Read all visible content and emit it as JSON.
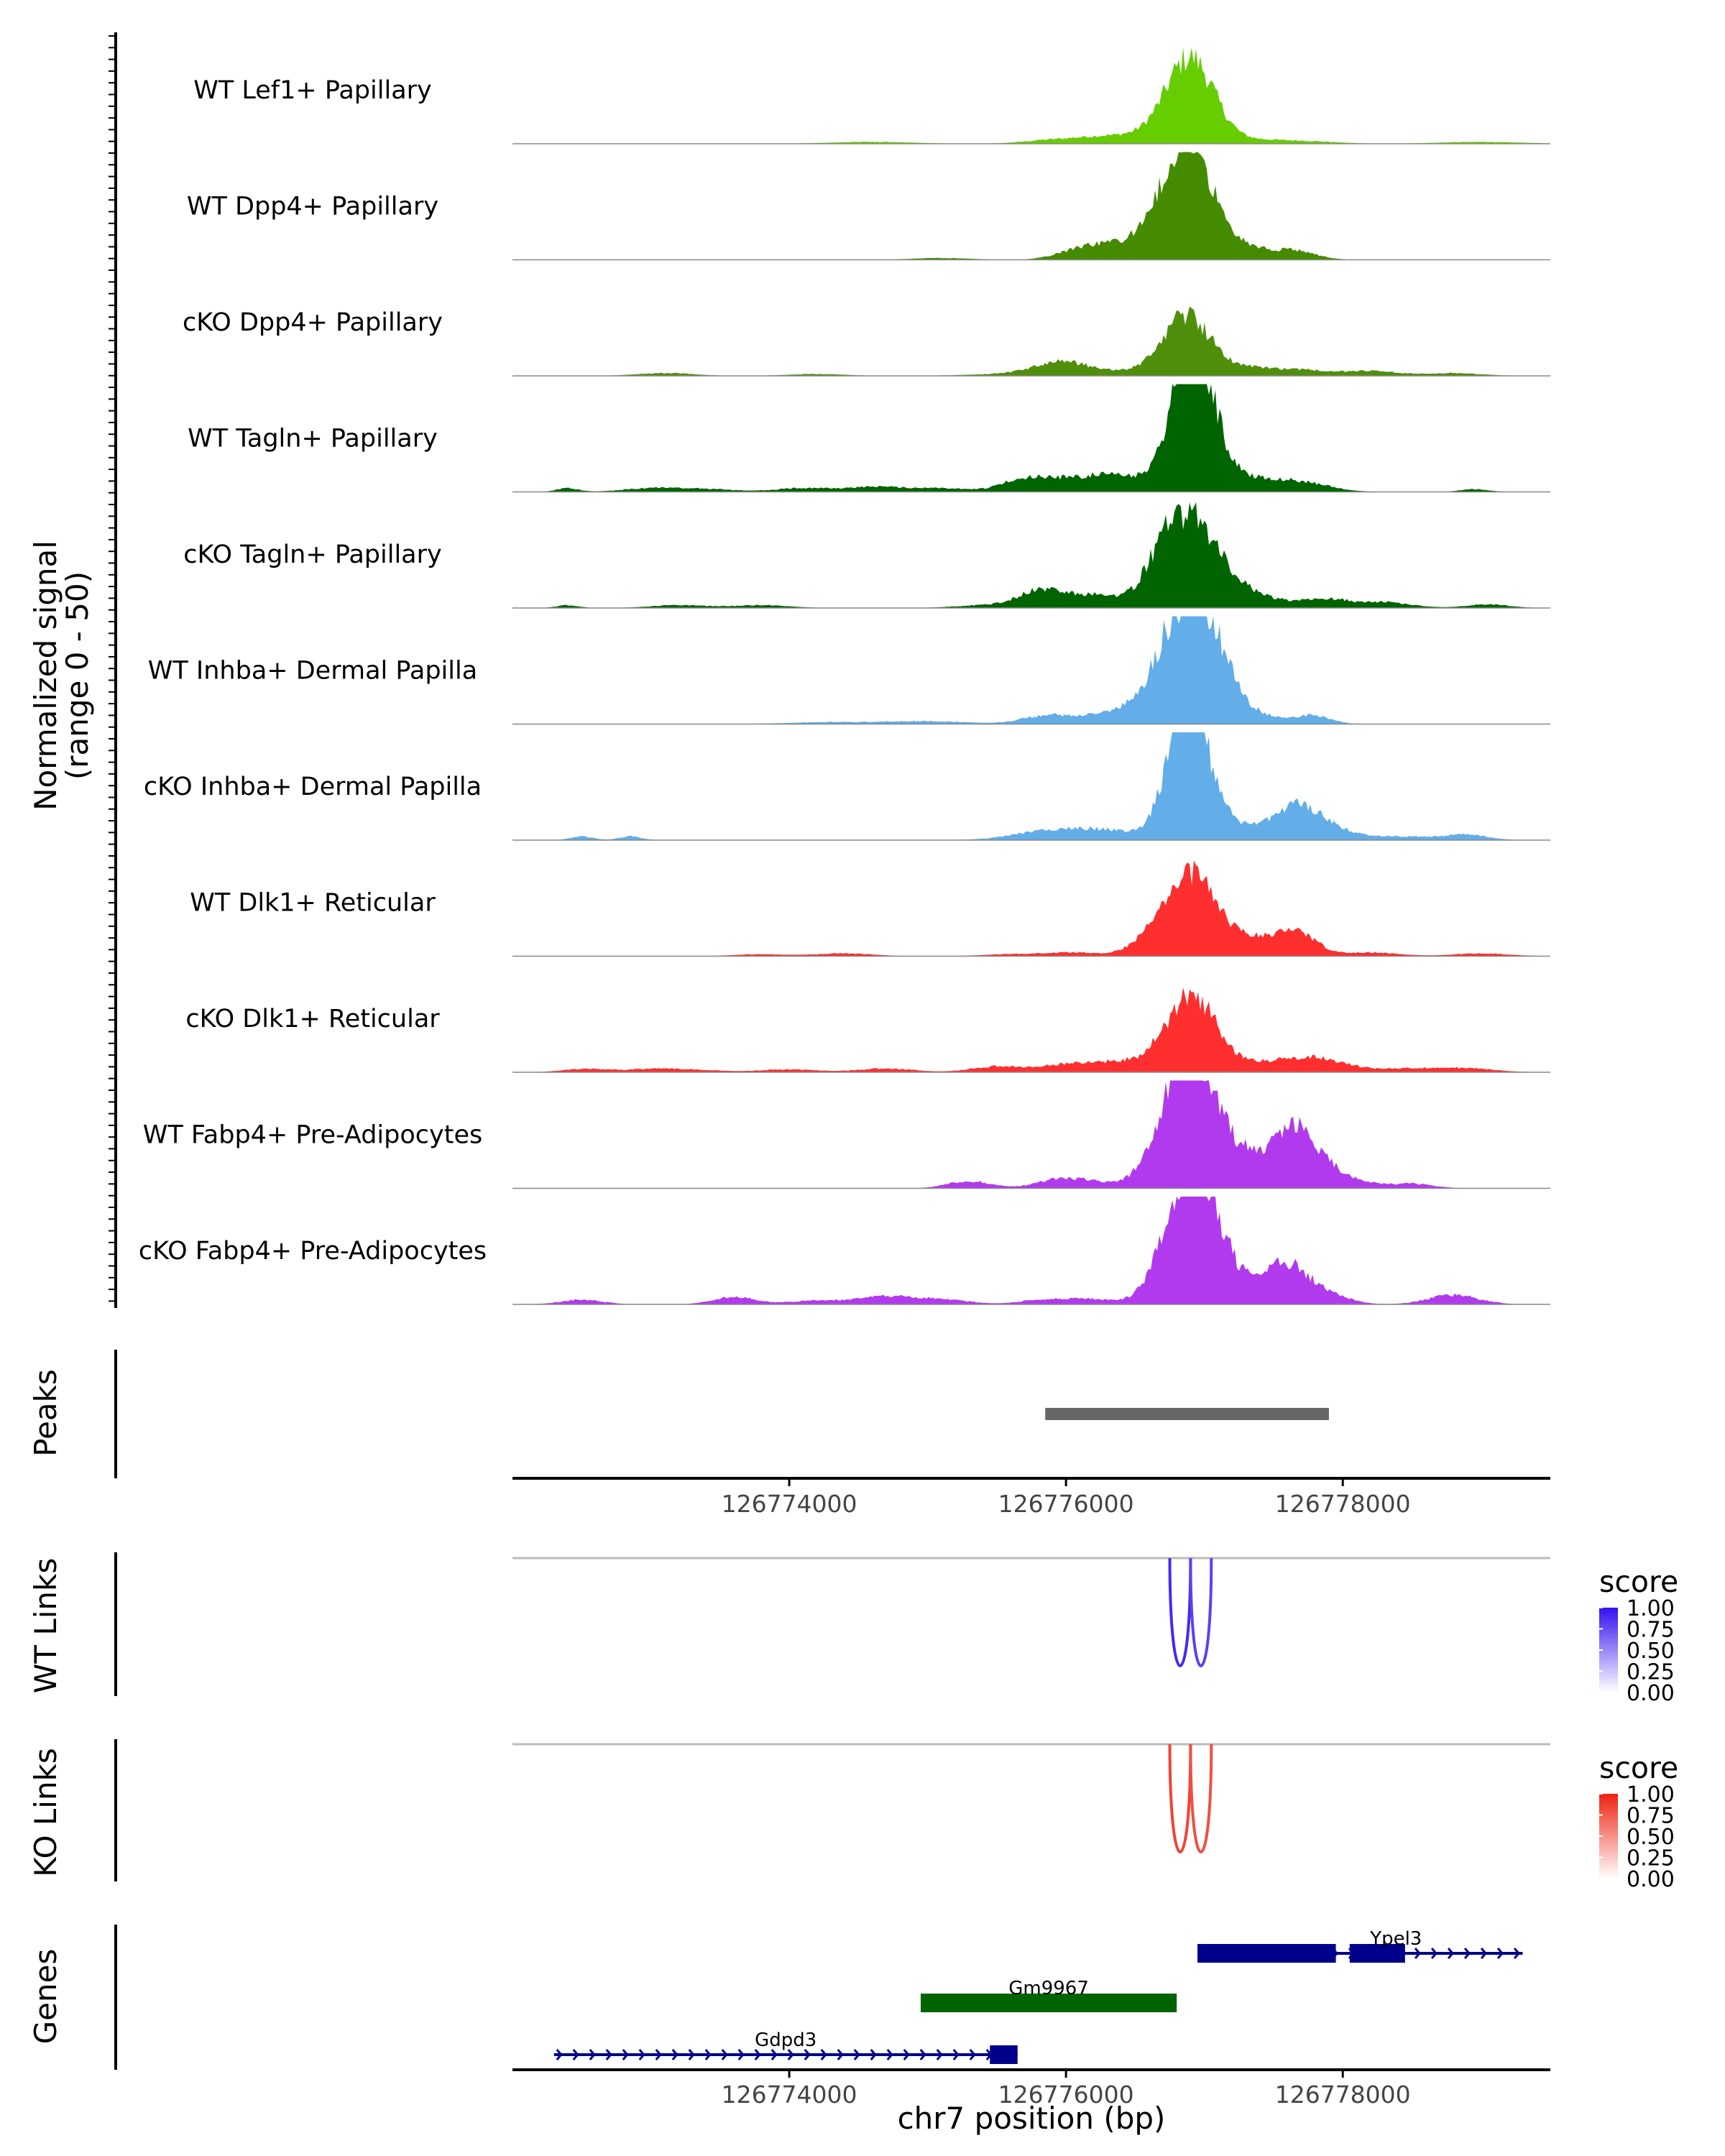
{
  "chart_data": {
    "type": "area",
    "title": "",
    "region": {
      "chrom": "chr7",
      "start": 126772000,
      "end": 126779500
    },
    "xlim": [
      126772000,
      126779500
    ],
    "xlabel": "chr7 position (bp)",
    "xticks": [
      {
        "value": 126774000,
        "label": "126774000"
      },
      {
        "value": 126776000,
        "label": "126776000"
      },
      {
        "value": 126778000,
        "label": "126778000"
      }
    ],
    "coverage": {
      "ylabel_line1": "Normalized signal",
      "ylabel_line2": "(range 0 - 50)",
      "ylim": [
        0,
        50
      ],
      "tracks": [
        {
          "name": "WT Lef1+ Papillary",
          "color": "#66CD00",
          "peaks": [
            [
              126776900,
              45,
              170
            ],
            [
              126774600,
              1,
              300
            ],
            [
              126775900,
              2,
              200
            ],
            [
              126776250,
              3,
              180
            ],
            [
              126776600,
              4,
              200
            ],
            [
              126777400,
              2,
              220
            ],
            [
              126777800,
              1,
              200
            ],
            [
              126779000,
              1,
              300
            ]
          ]
        },
        {
          "name": "WT Dpp4+ Papillary",
          "color": "#458B00",
          "peaks": [
            [
              126776900,
              60,
              170
            ],
            [
              126775100,
              1,
              200
            ],
            [
              126776050,
              4,
              150
            ],
            [
              126776250,
              6,
              130
            ],
            [
              126776500,
              8,
              130
            ],
            [
              126776700,
              10,
              120
            ],
            [
              126777300,
              6,
              150
            ],
            [
              126777650,
              5,
              150
            ]
          ]
        },
        {
          "name": "cKO Dpp4+ Papillary",
          "color": "#4F8F0B",
          "peaks": [
            [
              126776870,
              32,
              170
            ],
            [
              126773100,
              1.5,
              200
            ],
            [
              126774200,
              1,
              200
            ],
            [
              126775600,
              1,
              300
            ],
            [
              126775950,
              6,
              180
            ],
            [
              126776300,
              2.5,
              300
            ],
            [
              126777300,
              4,
              180
            ],
            [
              126777700,
              3,
              200
            ],
            [
              126778200,
              2.5,
              200
            ],
            [
              126778800,
              1.5,
              200
            ]
          ]
        },
        {
          "name": "WT Tagln+ Papillary",
          "color": "#006400",
          "peaks": [
            [
              126776880,
              58,
              130
            ],
            [
              126776980,
              35,
              150
            ],
            [
              126772400,
              2,
              80
            ],
            [
              126773000,
              2,
              200
            ],
            [
              126773400,
              1.5,
              200
            ],
            [
              126774100,
              2,
              200
            ],
            [
              126774600,
              2.5,
              200
            ],
            [
              126775100,
              2,
              250
            ],
            [
              126775700,
              7,
              150
            ],
            [
              126776000,
              6,
              150
            ],
            [
              126776250,
              6,
              130
            ],
            [
              126776500,
              7,
              150
            ],
            [
              126777350,
              6,
              180
            ],
            [
              126777700,
              5,
              200
            ],
            [
              126778950,
              1.5,
              100
            ]
          ]
        },
        {
          "name": "cKO Tagln+ Papillary",
          "color": "#006400",
          "peaks": [
            [
              126776900,
              46,
              200
            ],
            [
              126776700,
              12,
              120
            ],
            [
              126772400,
              1.5,
              80
            ],
            [
              126773200,
              1.5,
              200
            ],
            [
              126773800,
              1.5,
              200
            ],
            [
              126775400,
              1.5,
              200
            ],
            [
              126775800,
              8,
              150
            ],
            [
              126776200,
              7,
              250
            ],
            [
              126777300,
              7,
              200
            ],
            [
              126777850,
              5,
              180
            ],
            [
              126778300,
              3,
              200
            ],
            [
              126779050,
              2,
              150
            ]
          ]
        },
        {
          "name": "WT Inhba+ Dermal Papilla",
          "color": "#63ADE9",
          "peaks": [
            [
              126776930,
              68,
              200
            ],
            [
              126776700,
              10,
              120
            ],
            [
              126774300,
              1,
              300
            ],
            [
              126775000,
              1.5,
              300
            ],
            [
              126775800,
              3,
              150
            ],
            [
              126776100,
              4,
              200
            ],
            [
              126776450,
              6,
              150
            ],
            [
              126777450,
              3,
              200
            ],
            [
              126777800,
              4,
              120
            ]
          ]
        },
        {
          "name": "cKO Inhba+ Dermal Papilla",
          "color": "#63ADE9",
          "peaks": [
            [
              126776850,
              50,
              130
            ],
            [
              126776950,
              30,
              150
            ],
            [
              126772500,
              2,
              80
            ],
            [
              126772850,
              2,
              80
            ],
            [
              126775850,
              4,
              250
            ],
            [
              126776300,
              5,
              300
            ],
            [
              126777300,
              6,
              200
            ],
            [
              126777650,
              14,
              150
            ],
            [
              126777850,
              7,
              180
            ],
            [
              126778400,
              2,
              300
            ],
            [
              126778900,
              2.5,
              150
            ]
          ]
        },
        {
          "name": "WT Dlk1+ Reticular",
          "color": "#FF2F2F",
          "peaks": [
            [
              126776900,
              44,
              180
            ],
            [
              126776600,
              6,
              150
            ],
            [
              126773800,
              1,
              200
            ],
            [
              126774400,
              1.5,
              200
            ],
            [
              126775600,
              1,
              200
            ],
            [
              126776050,
              2,
              200
            ],
            [
              126777300,
              8,
              150
            ],
            [
              126777650,
              14,
              150
            ],
            [
              126778200,
              2,
              200
            ],
            [
              126779000,
              1.5,
              200
            ]
          ]
        },
        {
          "name": "cKO Dlk1+ Reticular",
          "color": "#FF2F2F",
          "peaks": [
            [
              126776900,
              38,
              180
            ],
            [
              126772500,
              1.5,
              150
            ],
            [
              126773100,
              2,
              300
            ],
            [
              126774000,
              1.5,
              200
            ],
            [
              126774700,
              2,
              200
            ],
            [
              126775500,
              3,
              180
            ],
            [
              126776000,
              4,
              200
            ],
            [
              126776400,
              5,
              200
            ],
            [
              126777000,
              3,
              250
            ],
            [
              126777600,
              6,
              250
            ],
            [
              126777900,
              4,
              200
            ],
            [
              126778500,
              2,
              200
            ],
            [
              126778900,
              2,
              200
            ]
          ]
        },
        {
          "name": "WT Fabp4+ Pre-Adipocytes",
          "color": "#B23AEE",
          "peaks": [
            [
              126776870,
              60,
              150
            ],
            [
              126777000,
              25,
              200
            ],
            [
              126776600,
              8,
              120
            ],
            [
              126775300,
              4,
              150
            ],
            [
              126775900,
              3,
              150
            ],
            [
              126776150,
              4,
              200
            ],
            [
              126777350,
              12,
              200
            ],
            [
              126777650,
              26,
              150
            ],
            [
              126777850,
              8,
              150
            ],
            [
              126778100,
              3,
              150
            ],
            [
              126778500,
              2.5,
              150
            ]
          ]
        },
        {
          "name": "cKO Fabp4+ Pre-Adipocytes",
          "color": "#B23AEE",
          "peaks": [
            [
              126776900,
              55,
              150
            ],
            [
              126777000,
              28,
              180
            ],
            [
              126776650,
              9,
              120
            ],
            [
              126772500,
              2.5,
              150
            ],
            [
              126773600,
              4,
              150
            ],
            [
              126774200,
              2,
              200
            ],
            [
              126774700,
              4,
              200
            ],
            [
              126775100,
              2.5,
              200
            ],
            [
              126775800,
              2,
              150
            ],
            [
              126776150,
              3,
              200
            ],
            [
              126777300,
              6,
              200
            ],
            [
              126777600,
              20,
              150
            ],
            [
              126777900,
              5,
              150
            ],
            [
              126778800,
              5,
              180
            ]
          ]
        }
      ]
    },
    "peaks_track": {
      "label": "Peaks",
      "color": "#666666",
      "peaks": [
        [
          126775850,
          126777900
        ]
      ]
    },
    "links": [
      {
        "label": "WT Links",
        "legend_title": "score",
        "legend_ticks": [
          "1.00",
          "0.75",
          "0.50",
          "0.25",
          "0.00"
        ],
        "color_low": "#FFFFFF",
        "color_high": "#3311EE",
        "arcs": [
          {
            "start": 126776750,
            "end": 126776900,
            "score": 0.9
          },
          {
            "start": 126776900,
            "end": 126777050,
            "score": 0.8
          }
        ]
      },
      {
        "label": "KO Links",
        "legend_title": "score",
        "legend_ticks": [
          "1.00",
          "0.75",
          "0.50",
          "0.25",
          "0.00"
        ],
        "color_low": "#FFFFFF",
        "color_high": "#EE2211",
        "arcs": [
          {
            "start": 126776750,
            "end": 126776900,
            "score": 0.85
          },
          {
            "start": 126776900,
            "end": 126777050,
            "score": 0.8
          }
        ]
      }
    ],
    "genes": {
      "label": "Genes",
      "items": [
        {
          "name": "Ypel3",
          "start": 126776950,
          "end": 126779300,
          "strand": "+",
          "color": "#00008B",
          "exons": [
            [
              126776950,
              126777950
            ],
            [
              126778050,
              126778450
            ]
          ]
        },
        {
          "name": "Gm9967",
          "start": 126774950,
          "end": 126776800,
          "strand": "none",
          "color": "#006400",
          "exons": [
            [
              126774950,
              126776800
            ]
          ]
        },
        {
          "name": "Gdpd3",
          "start": 126772300,
          "end": 126775650,
          "strand": "+",
          "color": "#00008B",
          "exons": [
            [
              126775450,
              126775650
            ]
          ]
        }
      ]
    }
  }
}
